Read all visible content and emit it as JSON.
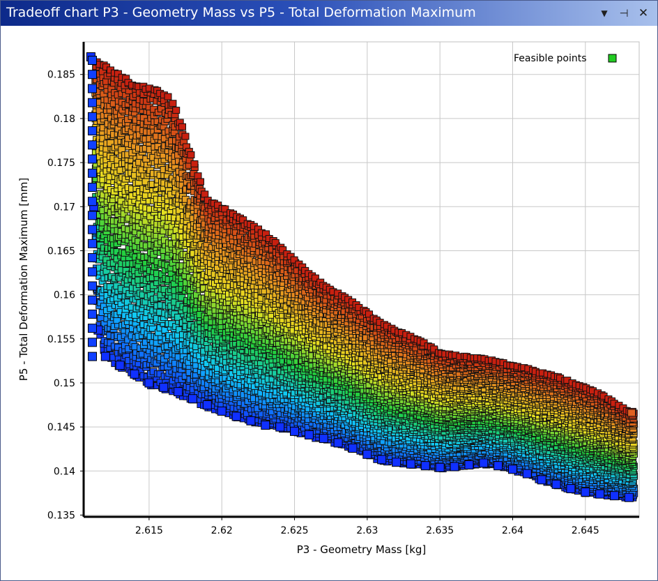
{
  "window": {
    "title": "Tradeoff chart P3 - Geometry Mass vs P5 - Total Deformation Maximum",
    "buttons": {
      "menu": "▼",
      "pin": "⊣",
      "close": "✕"
    }
  },
  "chart_data": {
    "type": "scatter",
    "title": "Tradeoff chart P3 - Geometry Mass vs P5 - Total Deformation Maximum",
    "xlabel": "P3 - Geometry Mass  [kg]",
    "ylabel": "P5 - Total Deformation Maximum  [mm]",
    "xlim": [
      2.6105,
      2.6487
    ],
    "ylim": [
      0.1348,
      0.1887
    ],
    "x_ticks": [
      "2.615",
      "2.62",
      "2.625",
      "2.63",
      "2.635",
      "2.64",
      "2.645"
    ],
    "x_tick_values": [
      2.615,
      2.62,
      2.625,
      2.63,
      2.635,
      2.64,
      2.645
    ],
    "y_ticks": [
      "0.185",
      "0.18",
      "0.175",
      "0.17",
      "0.165",
      "0.16",
      "0.155",
      "0.15",
      "0.145",
      "0.14",
      "0.135"
    ],
    "y_tick_values": [
      0.185,
      0.18,
      0.175,
      0.17,
      0.165,
      0.16,
      0.155,
      0.15,
      0.145,
      0.14,
      0.135
    ],
    "grid": true,
    "legend": {
      "placement": "top-right",
      "entries": [
        {
          "name": "Feasible points",
          "color": "#22cc22"
        }
      ]
    },
    "colormap": [
      "#1030ff",
      "#10c8ff",
      "#20d040",
      "#e8e020",
      "#e89020",
      "#c82010"
    ],
    "series": [
      {
        "name": "Feasible points",
        "color": "#22cc22",
        "lower_front": {
          "x": [
            2.611,
            2.6112,
            2.6115,
            2.612,
            2.613,
            2.614,
            2.615,
            2.616,
            2.617,
            2.618,
            2.619,
            2.62,
            2.621,
            2.622,
            2.623,
            2.624,
            2.625,
            2.626,
            2.627,
            2.628,
            2.629,
            2.63,
            2.631,
            2.632,
            2.633,
            2.634,
            2.635,
            2.636,
            2.637,
            2.638,
            2.639,
            2.64,
            2.641,
            2.642,
            2.643,
            2.644,
            2.645,
            2.646,
            2.647,
            2.648
          ],
          "y": [
            0.187,
            0.17,
            0.156,
            0.153,
            0.152,
            0.151,
            0.15,
            0.1495,
            0.149,
            0.1482,
            0.1475,
            0.1468,
            0.1462,
            0.1457,
            0.1452,
            0.145,
            0.1445,
            0.1441,
            0.1437,
            0.1432,
            0.1426,
            0.1419,
            0.1413,
            0.141,
            0.1408,
            0.1406,
            0.1404,
            0.1405,
            0.1407,
            0.1409,
            0.1406,
            0.1402,
            0.1397,
            0.139,
            0.1385,
            0.138,
            0.1376,
            0.1374,
            0.1372,
            0.137
          ]
        },
        "upper_front": {
          "x": [
            2.6112,
            2.612,
            2.613,
            2.614,
            2.615,
            2.616,
            2.6165,
            2.617,
            2.6175,
            2.618,
            2.6185,
            2.619,
            2.62,
            2.621,
            2.622,
            2.623,
            2.624,
            2.625,
            2.626,
            2.627,
            2.628,
            2.629,
            2.63,
            2.631,
            2.632,
            2.633,
            2.634,
            2.635,
            2.636,
            2.637,
            2.638,
            2.639,
            2.64,
            2.641,
            2.642,
            2.643,
            2.644,
            2.645,
            2.646,
            2.647,
            2.648
          ],
          "y": [
            0.1868,
            0.186,
            0.185,
            0.184,
            0.1835,
            0.183,
            0.1822,
            0.1805,
            0.178,
            0.1755,
            0.173,
            0.1708,
            0.17,
            0.169,
            0.168,
            0.167,
            0.1655,
            0.164,
            0.1625,
            0.1612,
            0.1602,
            0.1592,
            0.158,
            0.1568,
            0.156,
            0.1553,
            0.1545,
            0.1535,
            0.1532,
            0.153,
            0.1528,
            0.1525,
            0.152,
            0.1517,
            0.1512,
            0.1508,
            0.1502,
            0.1495,
            0.1488,
            0.1478,
            0.1468
          ]
        }
      }
    ]
  }
}
